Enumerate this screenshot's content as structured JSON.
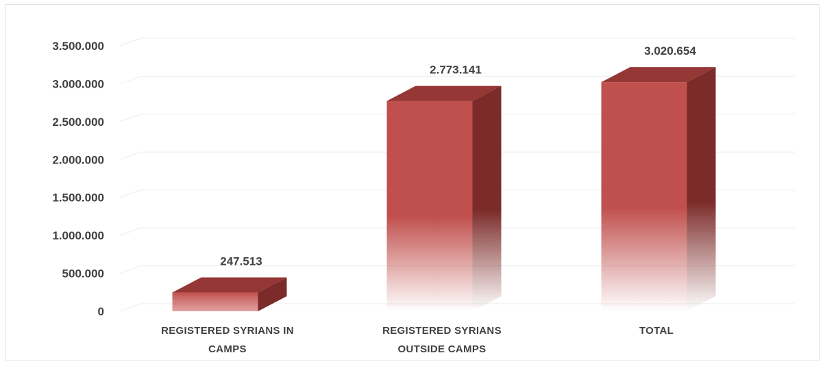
{
  "chart_data": {
    "type": "bar",
    "style": "3d-column",
    "categories": [
      [
        "REGISTERED SYRIANS IN",
        "CAMPS"
      ],
      [
        "REGISTERED SYRIANS",
        "OUTSIDE CAMPS"
      ],
      [
        "TOTAL"
      ]
    ],
    "values": [
      247513,
      2773141,
      3020654
    ],
    "value_labels": [
      "247.513",
      "2.773.141",
      "3.020.654"
    ],
    "y_ticks": [
      0,
      500000,
      1000000,
      1500000,
      2000000,
      2500000,
      3000000,
      3500000
    ],
    "y_tick_labels": [
      "0",
      "500.000",
      "1.000.000",
      "1.500.000",
      "2.000.000",
      "2.500.000",
      "3.000.000",
      "3.500.000"
    ],
    "ylim": [
      0,
      3500000
    ],
    "grid": true,
    "legend": "none",
    "colors": {
      "bar_front": "#c0504d",
      "bar_top": "#953734",
      "bar_side": "#7b2b29",
      "text": "#404040",
      "grid": "#ececec"
    }
  }
}
